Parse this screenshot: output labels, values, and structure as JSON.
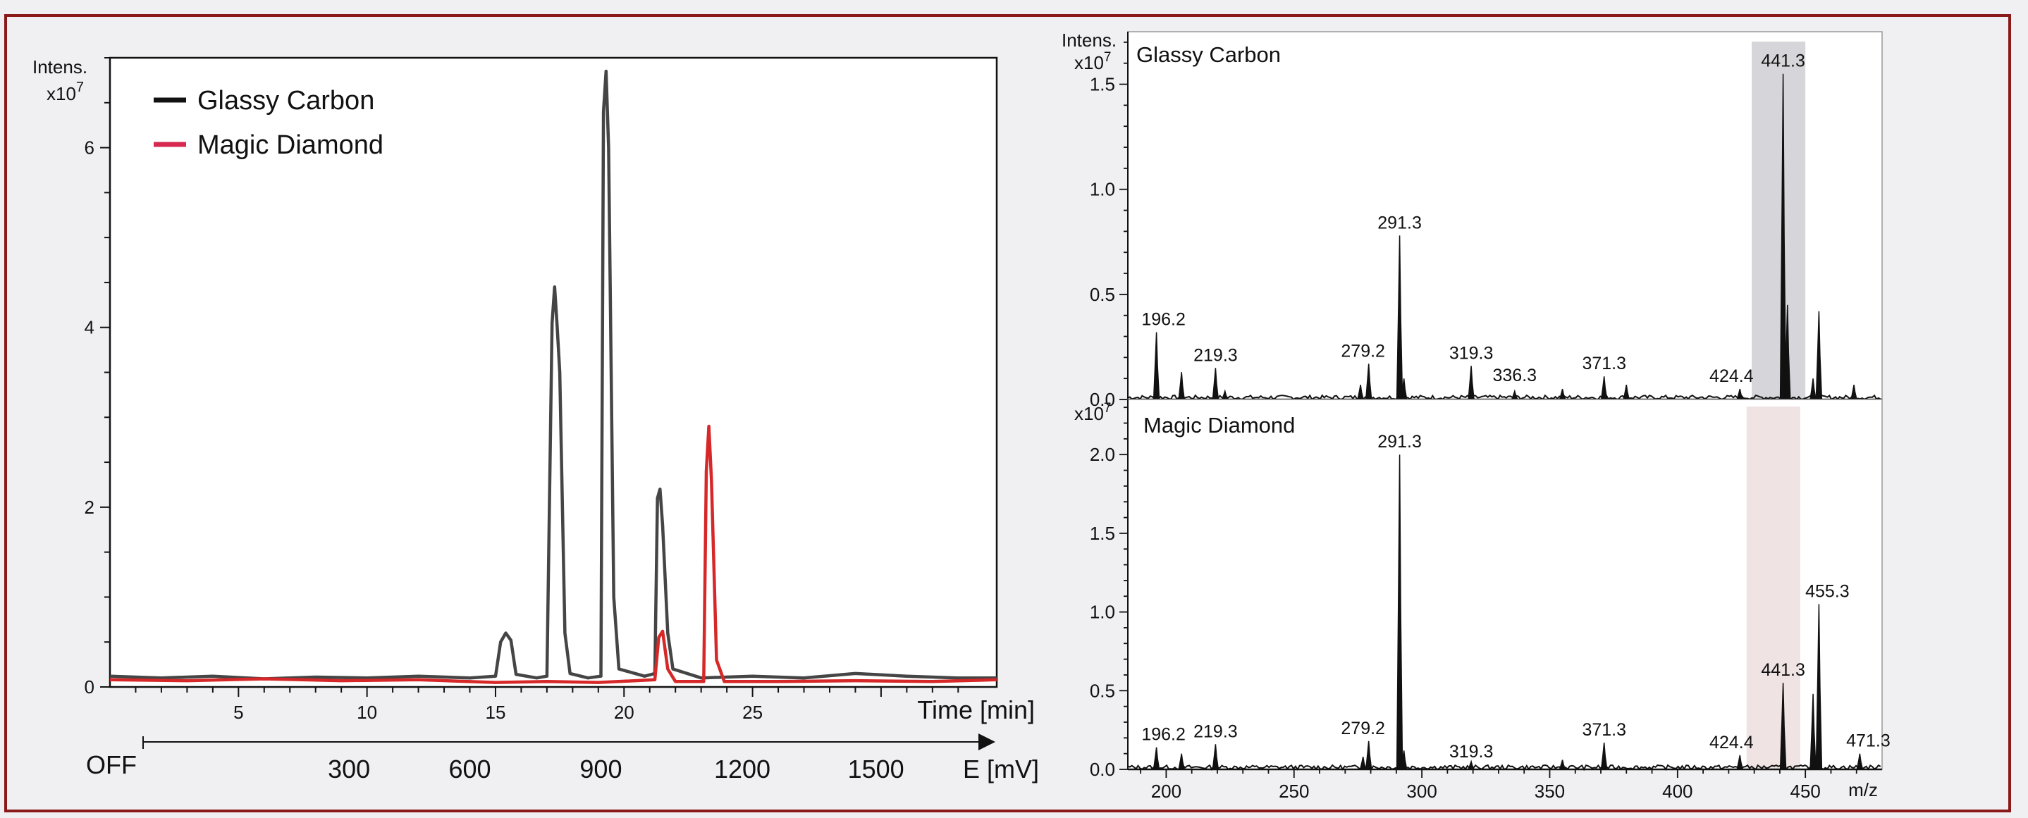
{
  "chart_data": [
    {
      "type": "line",
      "ylabel": "Intens.",
      "yscale_label": "x10",
      "yscale_exp": "7",
      "xlabel": "Time [min]",
      "xlim": [
        0,
        34.5
      ],
      "ylim": [
        0,
        7.0
      ],
      "yticks": [
        0,
        2,
        4,
        6
      ],
      "xticks": [
        5,
        10,
        15,
        20,
        25
      ],
      "legend_position": "top-left",
      "potential_axis": {
        "label": "E [mV]",
        "start_label": "OFF",
        "ticks": [
          {
            "t": 9.3,
            "label": "300"
          },
          {
            "t": 14.0,
            "label": "600"
          },
          {
            "t": 19.1,
            "label": "900"
          },
          {
            "t": 24.6,
            "label": "1200"
          },
          {
            "t": 29.8,
            "label": "1500"
          }
        ]
      },
      "series": [
        {
          "name": "Glassy Carbon",
          "color": "#454545",
          "points": [
            [
              0,
              0.12
            ],
            [
              2,
              0.1
            ],
            [
              4,
              0.12
            ],
            [
              6,
              0.09
            ],
            [
              8,
              0.11
            ],
            [
              10,
              0.1
            ],
            [
              12,
              0.12
            ],
            [
              14,
              0.1
            ],
            [
              15.0,
              0.12
            ],
            [
              15.2,
              0.5
            ],
            [
              15.4,
              0.6
            ],
            [
              15.6,
              0.52
            ],
            [
              15.8,
              0.14
            ],
            [
              16.6,
              0.1
            ],
            [
              17.0,
              0.12
            ],
            [
              17.2,
              4.05
            ],
            [
              17.3,
              4.45
            ],
            [
              17.4,
              4.0
            ],
            [
              17.5,
              3.5
            ],
            [
              17.7,
              0.6
            ],
            [
              17.9,
              0.15
            ],
            [
              18.6,
              0.1
            ],
            [
              19.1,
              0.12
            ],
            [
              19.2,
              6.4
            ],
            [
              19.3,
              6.85
            ],
            [
              19.4,
              6.0
            ],
            [
              19.6,
              1.0
            ],
            [
              19.8,
              0.2
            ],
            [
              20.8,
              0.12
            ],
            [
              21.2,
              0.15
            ],
            [
              21.3,
              2.1
            ],
            [
              21.4,
              2.2
            ],
            [
              21.5,
              1.8
            ],
            [
              21.7,
              0.6
            ],
            [
              21.9,
              0.2
            ],
            [
              23,
              0.1
            ],
            [
              25,
              0.12
            ],
            [
              27,
              0.1
            ],
            [
              29,
              0.15
            ],
            [
              31,
              0.12
            ],
            [
              33,
              0.1
            ],
            [
              34.5,
              0.1
            ]
          ]
        },
        {
          "name": "Magic Diamond",
          "color": "#d62828",
          "points": [
            [
              0,
              0.08
            ],
            [
              3,
              0.07
            ],
            [
              6,
              0.09
            ],
            [
              9,
              0.07
            ],
            [
              12,
              0.08
            ],
            [
              15.0,
              0.05
            ],
            [
              17,
              0.06
            ],
            [
              19,
              0.05
            ],
            [
              21.2,
              0.08
            ],
            [
              21.35,
              0.55
            ],
            [
              21.5,
              0.62
            ],
            [
              21.7,
              0.2
            ],
            [
              22,
              0.06
            ],
            [
              23.1,
              0.06
            ],
            [
              23.2,
              2.4
            ],
            [
              23.3,
              2.9
            ],
            [
              23.4,
              2.3
            ],
            [
              23.6,
              0.3
            ],
            [
              23.9,
              0.06
            ],
            [
              26,
              0.06
            ],
            [
              29,
              0.07
            ],
            [
              32,
              0.06
            ],
            [
              34.5,
              0.08
            ]
          ]
        }
      ]
    },
    {
      "type": "bar",
      "title": "Glassy Carbon",
      "ylabel": "Intens.",
      "yscale_label": "x10",
      "yscale_exp": "7",
      "xlabel": "m/z",
      "xlim": [
        185,
        480
      ],
      "ylim": [
        0,
        1.75
      ],
      "yticks": [
        "0.0",
        "0.5",
        "1.0",
        "1.5"
      ],
      "highlight_band": [
        429,
        450
      ],
      "highlight_color": "#d6d6da",
      "peaks": [
        {
          "mz": 196.2,
          "intensity": 0.32,
          "label": "196.2"
        },
        {
          "mz": 206.0,
          "intensity": 0.13,
          "label": ""
        },
        {
          "mz": 219.3,
          "intensity": 0.15,
          "label": "219.3"
        },
        {
          "mz": 223.0,
          "intensity": 0.04,
          "label": ""
        },
        {
          "mz": 276.0,
          "intensity": 0.07,
          "label": ""
        },
        {
          "mz": 279.2,
          "intensity": 0.17,
          "label": "279.2"
        },
        {
          "mz": 291.3,
          "intensity": 0.78,
          "label": "291.3"
        },
        {
          "mz": 293.0,
          "intensity": 0.1,
          "label": ""
        },
        {
          "mz": 319.3,
          "intensity": 0.16,
          "label": "319.3"
        },
        {
          "mz": 336.3,
          "intensity": 0.04,
          "label": "336.3"
        },
        {
          "mz": 355.0,
          "intensity": 0.05,
          "label": ""
        },
        {
          "mz": 371.3,
          "intensity": 0.11,
          "label": "371.3"
        },
        {
          "mz": 380.0,
          "intensity": 0.07,
          "label": ""
        },
        {
          "mz": 424.4,
          "intensity": 0.05,
          "label": "424.4"
        },
        {
          "mz": 441.3,
          "intensity": 1.55,
          "label": "441.3"
        },
        {
          "mz": 443.0,
          "intensity": 0.45,
          "label": ""
        },
        {
          "mz": 453.0,
          "intensity": 0.1,
          "label": ""
        },
        {
          "mz": 455.3,
          "intensity": 0.42,
          "label": ""
        },
        {
          "mz": 469.0,
          "intensity": 0.07,
          "label": ""
        }
      ]
    },
    {
      "type": "bar",
      "title": "Magic Diamond",
      "ylabel": "",
      "yscale_label": "x10",
      "yscale_exp": "7",
      "xlabel": "m/z",
      "xlim": [
        185,
        480
      ],
      "ylim": [
        0,
        2.35
      ],
      "yticks": [
        "0.0",
        "0.5",
        "1.0",
        "1.5",
        "2.0"
      ],
      "xticks": [
        200,
        250,
        300,
        350,
        400,
        450
      ],
      "highlight_band": [
        427,
        448
      ],
      "highlight_color": "#efe3e3",
      "peaks": [
        {
          "mz": 196.2,
          "intensity": 0.14,
          "label": "196.2"
        },
        {
          "mz": 206.0,
          "intensity": 0.1,
          "label": ""
        },
        {
          "mz": 219.3,
          "intensity": 0.16,
          "label": "219.3"
        },
        {
          "mz": 277.0,
          "intensity": 0.08,
          "label": ""
        },
        {
          "mz": 279.2,
          "intensity": 0.18,
          "label": "279.2"
        },
        {
          "mz": 291.3,
          "intensity": 2.0,
          "label": "291.3"
        },
        {
          "mz": 293.0,
          "intensity": 0.12,
          "label": ""
        },
        {
          "mz": 319.3,
          "intensity": 0.05,
          "label": "319.3"
        },
        {
          "mz": 355.0,
          "intensity": 0.06,
          "label": ""
        },
        {
          "mz": 371.3,
          "intensity": 0.17,
          "label": "371.3"
        },
        {
          "mz": 424.4,
          "intensity": 0.09,
          "label": "424.4"
        },
        {
          "mz": 441.3,
          "intensity": 0.55,
          "label": "441.3"
        },
        {
          "mz": 453.0,
          "intensity": 0.48,
          "label": ""
        },
        {
          "mz": 455.3,
          "intensity": 1.05,
          "label": "455.3"
        },
        {
          "mz": 471.3,
          "intensity": 0.1,
          "label": "471.3"
        }
      ]
    }
  ]
}
